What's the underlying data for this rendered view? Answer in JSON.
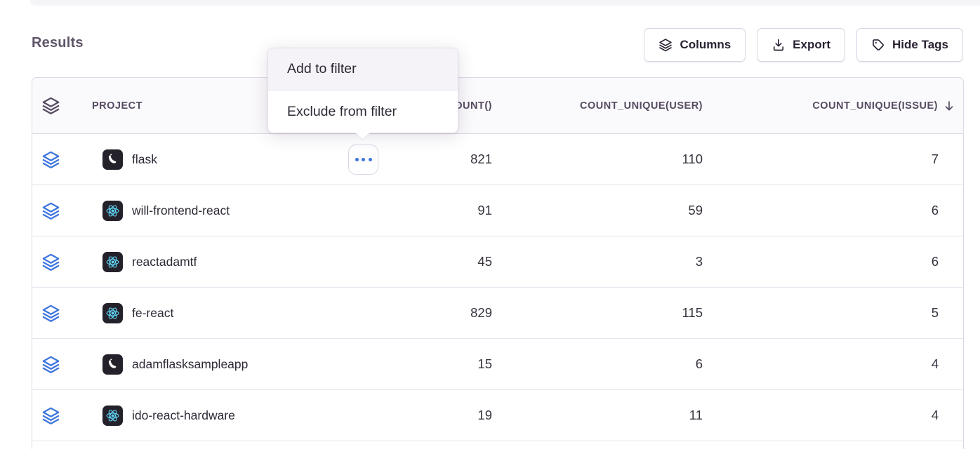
{
  "page": {
    "heading": "Results"
  },
  "toolbar": {
    "buttons": [
      {
        "label": "Columns",
        "icon": "layers-icon"
      },
      {
        "label": "Export",
        "icon": "download-icon"
      },
      {
        "label": "Hide Tags",
        "icon": "tag-icon"
      }
    ]
  },
  "context_menu": {
    "items": [
      {
        "label": "Add to filter",
        "hovered": true
      },
      {
        "label": "Exclude from filter",
        "hovered": false
      }
    ]
  },
  "table": {
    "columns": [
      {
        "key": "stack",
        "label": "",
        "icon": "layers-icon",
        "align": "left"
      },
      {
        "key": "project",
        "label": "PROJECT",
        "align": "left"
      },
      {
        "key": "count",
        "label": "COUNT()",
        "align": "right"
      },
      {
        "key": "count_unique_user",
        "label": "COUNT_UNIQUE(USER)",
        "align": "right"
      },
      {
        "key": "count_unique_issue",
        "label": "COUNT_UNIQUE(ISSUE)",
        "align": "right",
        "sort": "desc"
      }
    ],
    "rows": [
      {
        "project": "flask",
        "platform": "flask",
        "count": "821",
        "count_unique_user": "110",
        "count_unique_issue": "7",
        "has_menu_button": true
      },
      {
        "project": "will-frontend-react",
        "platform": "react",
        "count": "91",
        "count_unique_user": "59",
        "count_unique_issue": "6",
        "has_menu_button": false
      },
      {
        "project": "reactadamtf",
        "platform": "react",
        "count": "45",
        "count_unique_user": "3",
        "count_unique_issue": "6",
        "has_menu_button": false
      },
      {
        "project": "fe-react",
        "platform": "react",
        "count": "829",
        "count_unique_user": "115",
        "count_unique_issue": "5",
        "has_menu_button": false
      },
      {
        "project": "adamflasksampleapp",
        "platform": "flask",
        "count": "15",
        "count_unique_user": "6",
        "count_unique_issue": "4",
        "has_menu_button": false
      },
      {
        "project": "ido-react-hardware",
        "platform": "react",
        "count": "19",
        "count_unique_user": "11",
        "count_unique_issue": "4",
        "has_menu_button": false
      }
    ]
  },
  "colors": {
    "accent_blue": "#3C74DD",
    "react_logo": "#61DAFB",
    "platform_icon_bg": "#25212B",
    "heading_text": "#5F5468",
    "column_header_text": "#554B61",
    "body_text": "#2F2936",
    "table_border": "#DED8E6",
    "header_bg": "#FAF9FB",
    "menu_hover_bg": "#F5F3F7"
  }
}
